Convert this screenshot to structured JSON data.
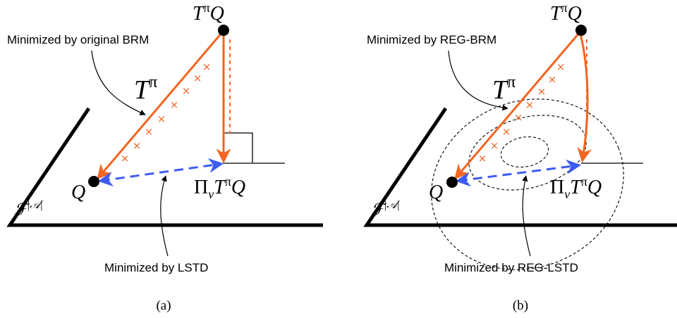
{
  "panels": [
    {
      "caption": "(a)",
      "top_label": "Minimized by original BRM",
      "bottom_label": "Minimized by LSTD",
      "operator_label": "T^π",
      "node_top": "T^πQ",
      "node_proj": "Π_νT^πQ",
      "node_q": "Q",
      "space_label": "F^|A|"
    },
    {
      "caption": "(b)",
      "top_label": "Minimized by REG-BRM",
      "bottom_label": "Minimized by REG-LSTD",
      "operator_label": "T^π",
      "node_top": "T^πQ",
      "node_proj": "Π_νT^πQ",
      "node_q": "Q",
      "space_label": "F^|A|"
    }
  ],
  "colors": {
    "orange": "#f26522",
    "blue": "#3d5bf2",
    "black": "#000000"
  }
}
